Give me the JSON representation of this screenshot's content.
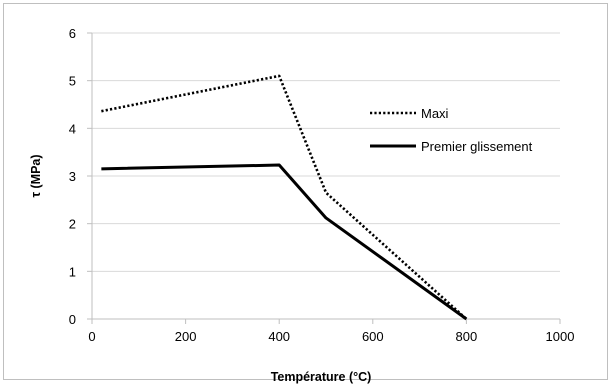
{
  "chart_data": {
    "type": "line",
    "title": "",
    "xlabel": "Température (°C)",
    "ylabel": "τ (MPa)",
    "xlim": [
      0,
      1000
    ],
    "ylim": [
      0,
      6
    ],
    "xticks": [
      0,
      200,
      400,
      600,
      800,
      1000
    ],
    "yticks": [
      0,
      1,
      2,
      3,
      4,
      5,
      6
    ],
    "xtick_labels": [
      "0",
      "200",
      "400",
      "600",
      "800",
      "1000"
    ],
    "ytick_labels": [
      "0",
      "1",
      "2",
      "3",
      "4",
      "5",
      "6"
    ],
    "grid": "horizontal",
    "legend_position": "right",
    "series": [
      {
        "name": "Maxi",
        "style": "dotted",
        "color": "#000000",
        "x": [
          20,
          400,
          500,
          800
        ],
        "y": [
          4.36,
          5.1,
          2.65,
          0
        ]
      },
      {
        "name": "Premier glissement",
        "style": "solid",
        "color": "#000000",
        "x": [
          20,
          400,
          500,
          800
        ],
        "y": [
          3.15,
          3.23,
          2.12,
          0
        ]
      }
    ]
  }
}
